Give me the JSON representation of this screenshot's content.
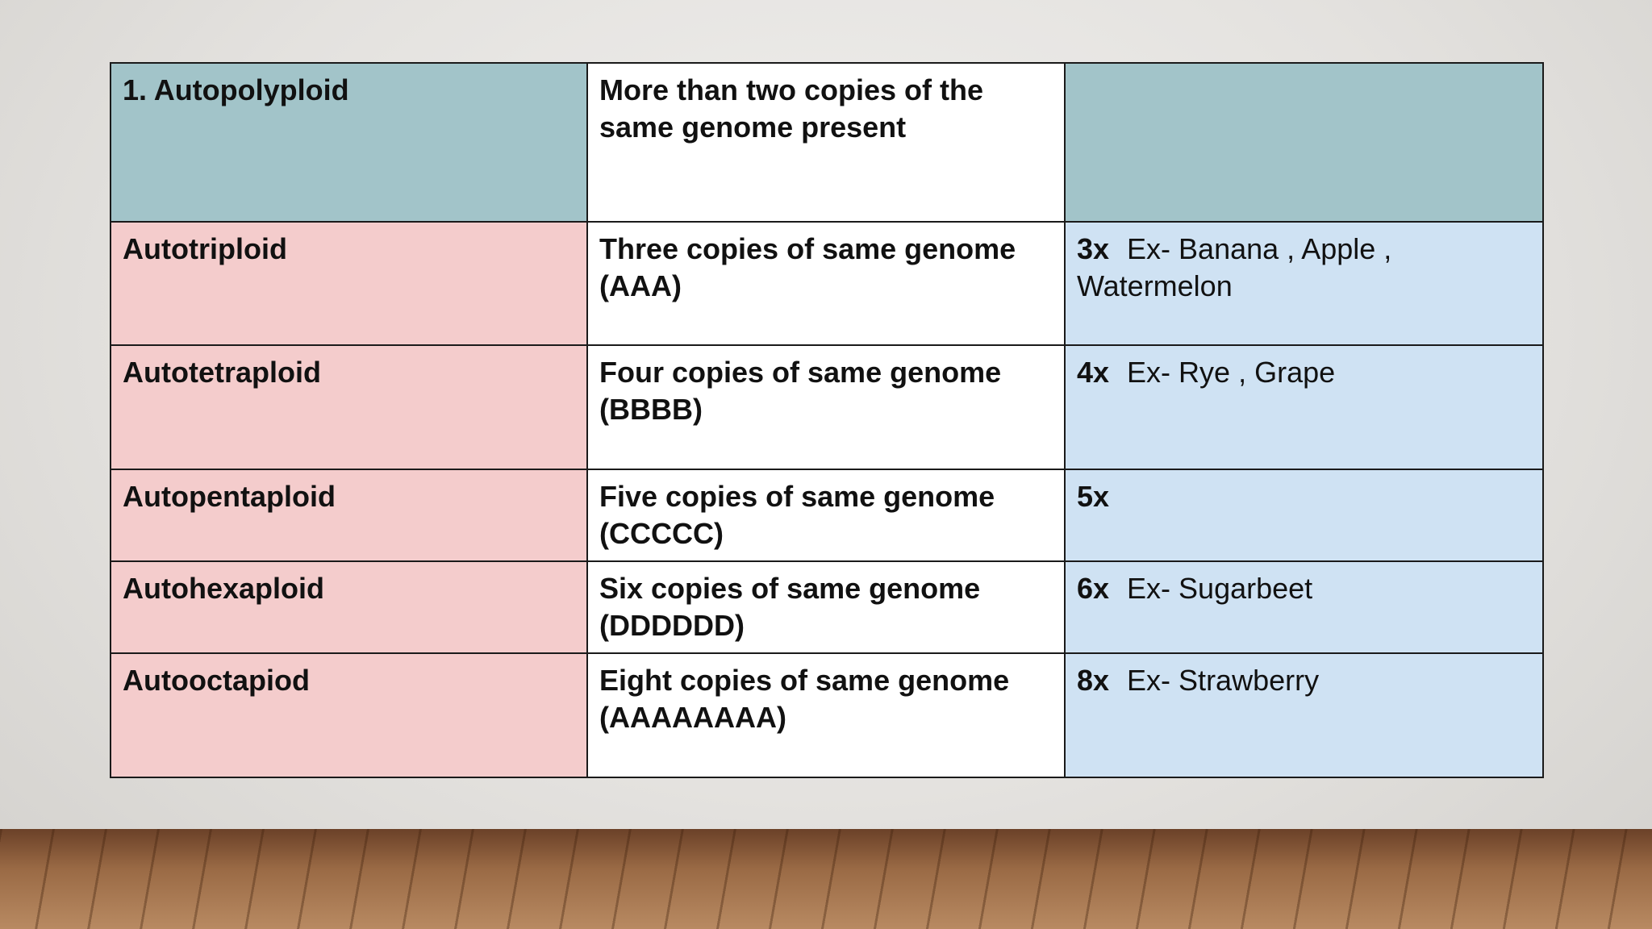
{
  "table": {
    "rows": [
      {
        "name": "1. Autopolyploid",
        "description": "More than two copies of the same genome present"
      },
      {
        "name": "Autotriploid",
        "description": "Three copies of same genome",
        "formula": "(AAA)",
        "ploidy": "3x",
        "example": "Ex-  Banana , Apple , Watermelon"
      },
      {
        "name": "Autotetraploid",
        "description": "Four copies of same genome",
        "formula": "(BBBB)",
        "ploidy": "4x",
        "example": "Ex- Rye , Grape"
      },
      {
        "name": "Autopentaploid",
        "description": "Five copies of same genome",
        "formula": "(CCCCC)",
        "ploidy": "5x"
      },
      {
        "name": "Autohexaploid",
        "description": "Six copies of same genome",
        "formula": "(DDDDDD)",
        "ploidy": "6x",
        "example": "Ex-  Sugarbeet"
      },
      {
        "name": "Autooctapiod",
        "description": "Eight copies of same genome",
        "formula": "(AAAAAAAA)",
        "ploidy": "8x",
        "example": "Ex- Strawberry"
      }
    ]
  }
}
